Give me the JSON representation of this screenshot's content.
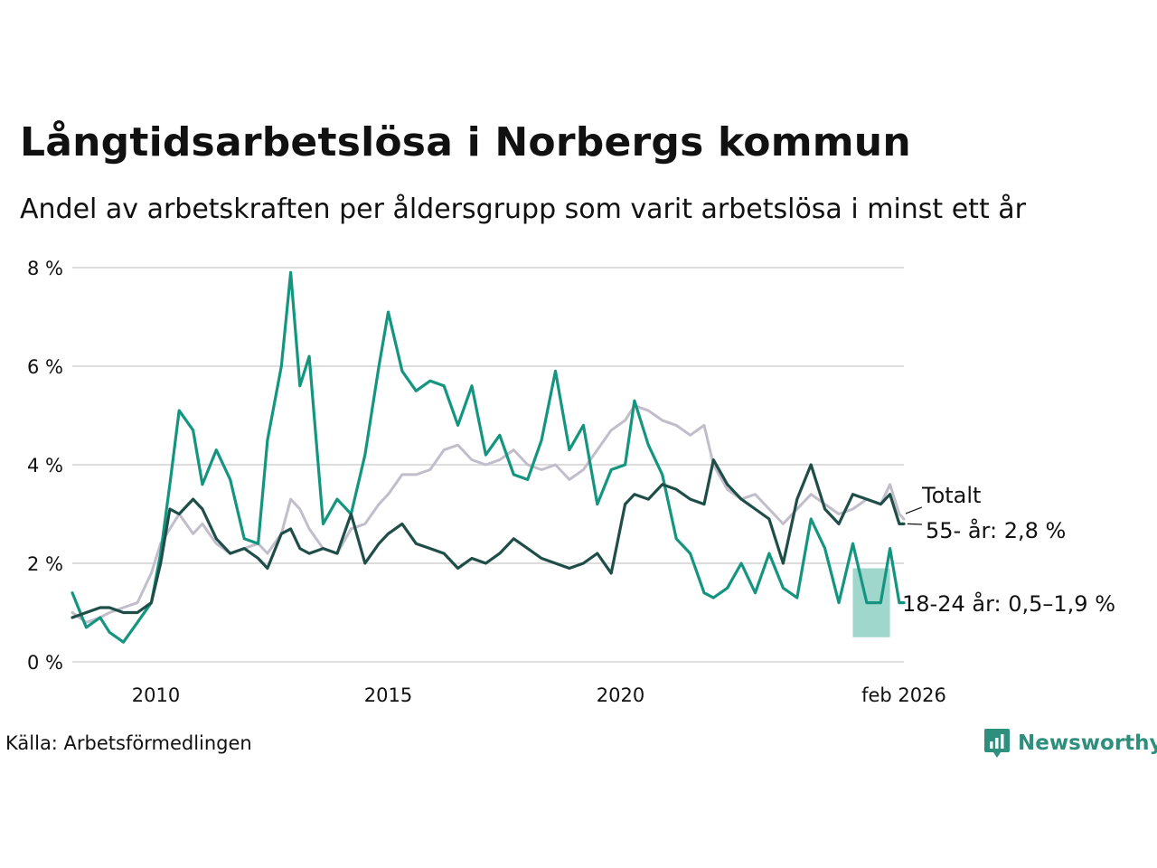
{
  "title": "Långtidsarbetslösa i Norbergs kommun",
  "subtitle": "Andel av arbetskraften per åldersgrupp som varit arbetslösa i minst ett år",
  "source": "Källa: Arbetsförmedlingen",
  "brand": "Newsworthy",
  "colors": {
    "totalt": "#c2bdcb",
    "age55": "#1f4d47",
    "age1824": "#14957f",
    "age1824_band": "#8fd0c4",
    "grid": "#dddddd",
    "brand": "#2f8f7d"
  },
  "chart_data": {
    "type": "line",
    "title": "Långtidsarbetslösa i Norbergs kommun",
    "xlabel": "",
    "ylabel": "",
    "xlim": [
      2008.2,
      2026.1
    ],
    "ylim": [
      0,
      8
    ],
    "yticks": [
      0,
      2,
      4,
      6,
      8
    ],
    "ytick_labels": [
      "0 %",
      "2 %",
      "4 %",
      "6 %",
      "8 %"
    ],
    "xticks": [
      2010,
      2015,
      2020,
      2026.1
    ],
    "xtick_labels": [
      "2010",
      "2015",
      "2020",
      "feb 2026"
    ],
    "series": [
      {
        "name": "Totalt",
        "label": "Totalt",
        "color_key": "totalt",
        "x": [
          2008.2,
          2008.5,
          2008.8,
          2009.0,
          2009.3,
          2009.6,
          2009.9,
          2010.1,
          2010.3,
          2010.5,
          2010.8,
          2011.0,
          2011.3,
          2011.6,
          2011.9,
          2012.2,
          2012.4,
          2012.7,
          2012.9,
          2013.1,
          2013.3,
          2013.6,
          2013.9,
          2014.2,
          2014.5,
          2014.8,
          2015.0,
          2015.3,
          2015.6,
          2015.9,
          2016.2,
          2016.5,
          2016.8,
          2017.1,
          2017.4,
          2017.7,
          2018.0,
          2018.3,
          2018.6,
          2018.9,
          2019.2,
          2019.5,
          2019.8,
          2020.1,
          2020.3,
          2020.6,
          2020.9,
          2021.2,
          2021.5,
          2021.8,
          2022.0,
          2022.3,
          2022.6,
          2022.9,
          2023.2,
          2023.5,
          2023.8,
          2024.1,
          2024.4,
          2024.7,
          2025.0,
          2025.3,
          2025.6,
          2025.8,
          2026.0,
          2026.1
        ],
        "values": [
          1.0,
          0.8,
          0.9,
          1.0,
          1.1,
          1.2,
          1.8,
          2.4,
          2.7,
          3.0,
          2.6,
          2.8,
          2.4,
          2.2,
          2.3,
          2.4,
          2.2,
          2.6,
          3.3,
          3.1,
          2.7,
          2.3,
          2.2,
          2.7,
          2.8,
          3.2,
          3.4,
          3.8,
          3.8,
          3.9,
          4.3,
          4.4,
          4.1,
          4.0,
          4.1,
          4.3,
          4.0,
          3.9,
          4.0,
          3.7,
          3.9,
          4.3,
          4.7,
          4.9,
          5.2,
          5.1,
          4.9,
          4.8,
          4.6,
          4.8,
          4.0,
          3.5,
          3.3,
          3.4,
          3.1,
          2.8,
          3.1,
          3.4,
          3.2,
          3.0,
          3.1,
          3.3,
          3.2,
          3.6,
          3.0,
          2.9
        ]
      },
      {
        "name": "55- år",
        "label": "55- år: 2,8 %",
        "color_key": "age55",
        "x": [
          2008.2,
          2008.5,
          2008.8,
          2009.0,
          2009.3,
          2009.6,
          2009.9,
          2010.1,
          2010.3,
          2010.5,
          2010.8,
          2011.0,
          2011.3,
          2011.6,
          2011.9,
          2012.2,
          2012.4,
          2012.7,
          2012.9,
          2013.1,
          2013.3,
          2013.6,
          2013.9,
          2014.2,
          2014.5,
          2014.8,
          2015.0,
          2015.3,
          2015.6,
          2015.9,
          2016.2,
          2016.5,
          2016.8,
          2017.1,
          2017.4,
          2017.7,
          2018.0,
          2018.3,
          2018.6,
          2018.9,
          2019.2,
          2019.5,
          2019.8,
          2020.1,
          2020.3,
          2020.6,
          2020.9,
          2021.2,
          2021.5,
          2021.8,
          2022.0,
          2022.3,
          2022.6,
          2022.9,
          2023.2,
          2023.5,
          2023.8,
          2024.1,
          2024.4,
          2024.7,
          2025.0,
          2025.3,
          2025.6,
          2025.8,
          2026.0,
          2026.1
        ],
        "values": [
          0.9,
          1.0,
          1.1,
          1.1,
          1.0,
          1.0,
          1.2,
          2.0,
          3.1,
          3.0,
          3.3,
          3.1,
          2.5,
          2.2,
          2.3,
          2.1,
          1.9,
          2.6,
          2.7,
          2.3,
          2.2,
          2.3,
          2.2,
          3.0,
          2.0,
          2.4,
          2.6,
          2.8,
          2.4,
          2.3,
          2.2,
          1.9,
          2.1,
          2.0,
          2.2,
          2.5,
          2.3,
          2.1,
          2.0,
          1.9,
          2.0,
          2.2,
          1.8,
          3.2,
          3.4,
          3.3,
          3.6,
          3.5,
          3.3,
          3.2,
          4.1,
          3.6,
          3.3,
          3.1,
          2.9,
          2.0,
          3.3,
          4.0,
          3.1,
          2.8,
          3.4,
          3.3,
          3.2,
          3.4,
          2.8,
          2.8
        ]
      },
      {
        "name": "18-24 år",
        "label": "18-24 år: 0,5–1,9 %",
        "color_key": "age1824",
        "x": [
          2008.2,
          2008.5,
          2008.8,
          2009.0,
          2009.3,
          2009.6,
          2009.9,
          2010.1,
          2010.3,
          2010.5,
          2010.8,
          2011.0,
          2011.3,
          2011.6,
          2011.9,
          2012.2,
          2012.4,
          2012.7,
          2012.9,
          2013.1,
          2013.3,
          2013.6,
          2013.9,
          2014.2,
          2014.5,
          2014.8,
          2015.0,
          2015.3,
          2015.6,
          2015.9,
          2016.2,
          2016.5,
          2016.8,
          2017.1,
          2017.4,
          2017.7,
          2018.0,
          2018.3,
          2018.6,
          2018.9,
          2019.2,
          2019.5,
          2019.8,
          2020.1,
          2020.3,
          2020.6,
          2020.9,
          2021.2,
          2021.5,
          2021.8,
          2022.0,
          2022.3,
          2022.6,
          2022.9,
          2023.2,
          2023.5,
          2023.8,
          2024.1,
          2024.4,
          2024.7,
          2025.0,
          2025.3,
          2025.6,
          2025.8,
          2026.0,
          2026.1
        ],
        "values": [
          1.4,
          0.7,
          0.9,
          0.6,
          0.4,
          0.8,
          1.2,
          2.2,
          3.6,
          5.1,
          4.7,
          3.6,
          4.3,
          3.7,
          2.5,
          2.4,
          4.5,
          6.0,
          7.9,
          5.6,
          6.2,
          2.8,
          3.3,
          3.0,
          4.2,
          6.0,
          7.1,
          5.9,
          5.5,
          5.7,
          5.6,
          4.8,
          5.6,
          4.2,
          4.6,
          3.8,
          3.7,
          4.5,
          5.9,
          4.3,
          4.8,
          3.2,
          3.9,
          4.0,
          5.3,
          4.4,
          3.8,
          2.5,
          2.2,
          1.4,
          1.3,
          1.5,
          2.0,
          1.4,
          2.2,
          1.5,
          1.3,
          2.9,
          2.3,
          1.2,
          2.4,
          1.2,
          1.2,
          2.3,
          1.2,
          1.2
        ]
      }
    ],
    "uncertainty_band": {
      "series": "18-24 år",
      "x": [
        2025.0,
        2025.2,
        2025.4,
        2025.6,
        2025.8
      ],
      "low": [
        0.5,
        0.5,
        0.5,
        0.5,
        0.5
      ],
      "high": [
        1.9,
        1.9,
        1.9,
        1.9,
        1.9
      ]
    }
  }
}
